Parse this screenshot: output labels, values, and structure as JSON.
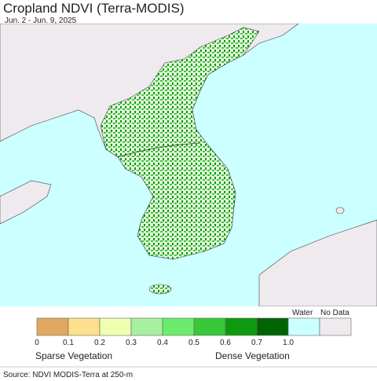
{
  "header": {
    "title": "Cropland NDVI (Terra-MODIS)",
    "subtitle": "Jun. 2 - Jun. 9, 2025"
  },
  "legend": {
    "colors": [
      "#e0a860",
      "#fde08d",
      "#eeffb0",
      "#a8f0a0",
      "#6cec6c",
      "#38c838",
      "#0e9a0e",
      "#006400",
      "#ccffff",
      "#eeeaee"
    ],
    "ticks": [
      "0",
      "0.1",
      "0.2",
      "0.3",
      "0.4",
      "0.5",
      "0.6",
      "0.7",
      "1.0"
    ],
    "water_label": "Water",
    "nodata_label": "No Data",
    "low_label": "Sparse Vegetation",
    "high_label": "Dense Vegetation"
  },
  "footer": {
    "source": "Source: NDVI MODIS-Terra at 250-m"
  }
}
